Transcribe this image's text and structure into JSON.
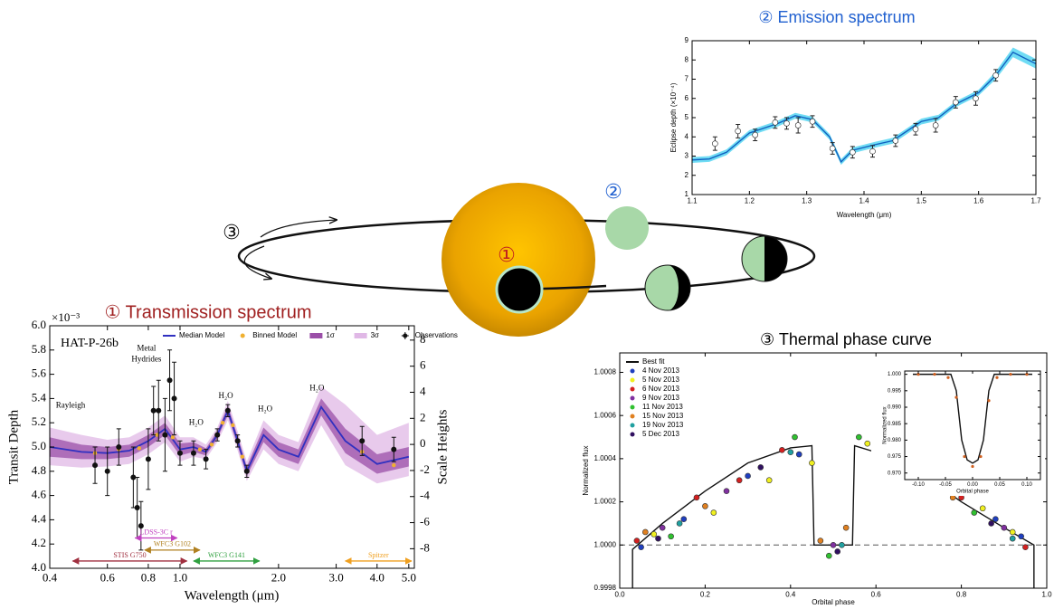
{
  "diagram": {
    "labels": [
      "③",
      "②",
      "①"
    ]
  },
  "chart_data": [
    {
      "type": "line",
      "title": "① Transmission spectrum",
      "panel_label": "HAT-P-26b",
      "xlabel": "Wavelength (μm)",
      "ylabel": "Transit Depth",
      "y2label": "Scale Heights",
      "y_multiplier": "×10⁻³",
      "xscale": "log",
      "xlim": [
        0.4,
        5.2
      ],
      "ylim": [
        4.0,
        6.0
      ],
      "y2lim": [
        -9.5,
        9.1
      ],
      "xticks": [
        0.4,
        0.6,
        0.8,
        {
          "value": 1,
          "label": "1.0"
        },
        {
          "value": 2,
          "label": "2.0"
        },
        {
          "value": 3,
          "label": "3.0"
        },
        {
          "value": 4,
          "label": "4.0"
        },
        {
          "value": 5,
          "label": "5.0"
        }
      ],
      "yticks": [
        {
          "value": 4,
          "label": "4.0"
        },
        4.2,
        4.4,
        4.6,
        4.8,
        {
          "value": 5,
          "label": "5.0"
        },
        5.2,
        5.4,
        5.6,
        5.8,
        {
          "value": 6,
          "label": "6.0"
        }
      ],
      "y2ticks": [
        -8,
        -6,
        -4,
        -2,
        0,
        2,
        4,
        6,
        8
      ],
      "legend": "top",
      "series": [
        {
          "name": "Median Model",
          "style": "line",
          "color": "#3030c0",
          "x": [
            0.4,
            0.5,
            0.6,
            0.7,
            0.8,
            0.9,
            1.0,
            1.1,
            1.2,
            1.3,
            1.4,
            1.5,
            1.6,
            1.8,
            2.0,
            2.3,
            2.7,
            3.2,
            4.0,
            5.0
          ],
          "values": [
            5.0,
            4.96,
            4.95,
            4.97,
            5.05,
            5.15,
            4.98,
            5.0,
            4.96,
            5.1,
            5.3,
            5.05,
            4.8,
            5.1,
            4.98,
            4.92,
            5.33,
            5.05,
            4.86,
            4.92
          ]
        },
        {
          "name": "Binned Model",
          "style": "points",
          "color": "#f0b030",
          "x": [
            0.55,
            0.65,
            0.75,
            0.85,
            0.95,
            1.15,
            1.25,
            1.35,
            1.45,
            1.55,
            3.6,
            4.5
          ],
          "values": [
            4.95,
            4.98,
            4.99,
            5.1,
            5.08,
            4.98,
            5.02,
            5.2,
            5.18,
            4.92,
            4.96,
            4.85
          ]
        },
        {
          "name": "1σ",
          "style": "band",
          "color": "#9b4fa8",
          "x": [
            0.4,
            0.5,
            0.6,
            0.7,
            0.8,
            0.9,
            1.0,
            1.1,
            1.2,
            1.3,
            1.4,
            1.5,
            1.6,
            1.8,
            2.0,
            2.3,
            2.7,
            3.2,
            4.0,
            5.0
          ],
          "lower": [
            4.92,
            4.9,
            4.9,
            4.92,
            5.0,
            5.1,
            4.93,
            4.96,
            4.93,
            5.07,
            5.26,
            5.01,
            4.76,
            5.04,
            4.92,
            4.86,
            5.26,
            4.95,
            4.78,
            4.84
          ],
          "upper": [
            5.08,
            5.02,
            5.0,
            5.02,
            5.1,
            5.2,
            5.03,
            5.04,
            4.99,
            5.13,
            5.34,
            5.09,
            4.84,
            5.16,
            5.04,
            4.98,
            5.4,
            5.15,
            4.94,
            5.0
          ]
        },
        {
          "name": "3σ",
          "style": "band",
          "color": "#e0b8e6",
          "x": [
            0.4,
            0.5,
            0.6,
            0.7,
            0.8,
            0.9,
            1.0,
            1.1,
            1.2,
            1.3,
            1.4,
            1.5,
            1.6,
            1.8,
            2.0,
            2.3,
            2.7,
            3.2,
            4.0,
            5.0
          ],
          "lower": [
            4.85,
            4.83,
            4.84,
            4.86,
            4.94,
            5.04,
            4.88,
            4.92,
            4.9,
            5.04,
            5.22,
            4.97,
            4.72,
            4.98,
            4.86,
            4.8,
            5.18,
            4.85,
            4.7,
            4.76
          ],
          "upper": [
            5.16,
            5.1,
            5.06,
            5.08,
            5.16,
            5.26,
            5.08,
            5.08,
            5.02,
            5.16,
            5.38,
            5.13,
            4.88,
            5.22,
            5.1,
            5.04,
            5.5,
            5.35,
            5.1,
            5.2
          ]
        },
        {
          "name": "Observations",
          "style": "errorbar",
          "color": "#111111",
          "x": [
            0.55,
            0.6,
            0.65,
            0.72,
            0.74,
            0.76,
            0.8,
            0.83,
            0.86,
            0.9,
            0.93,
            0.96,
            1.0,
            1.1,
            1.2,
            1.3,
            1.4,
            1.5,
            1.6,
            3.6,
            4.5
          ],
          "values": [
            4.85,
            4.8,
            5.0,
            4.75,
            4.5,
            4.35,
            4.9,
            5.3,
            5.3,
            5.1,
            5.55,
            5.4,
            4.95,
            4.95,
            4.9,
            5.1,
            5.3,
            5.05,
            4.8,
            5.05,
            4.98
          ],
          "errors": [
            0.15,
            0.2,
            0.15,
            0.25,
            0.25,
            0.2,
            0.25,
            0.2,
            0.25,
            0.3,
            0.25,
            0.3,
            0.1,
            0.1,
            0.08,
            0.05,
            0.05,
            0.05,
            0.05,
            0.12,
            0.1
          ]
        }
      ],
      "annotations": [
        {
          "text": "Rayleigh",
          "x": 0.463,
          "y": 5.34
        },
        {
          "text": "Metal",
          "x": 0.79,
          "y": 5.81
        },
        {
          "text": "Hydrides",
          "x": 0.79,
          "y": 5.72
        },
        {
          "text": "H₂O",
          "x": 1.12,
          "y": 5.2
        },
        {
          "text": "H₂O",
          "x": 1.38,
          "y": 5.42
        },
        {
          "text": "H₂O",
          "x": 1.82,
          "y": 5.31
        },
        {
          "text": "H₂O",
          "x": 2.62,
          "y": 5.48
        }
      ],
      "ranges": [
        {
          "label": "LDSS-3C r",
          "range": [
            0.73,
            0.98
          ],
          "y": 4.25,
          "color": "#c040c0"
        },
        {
          "label": "STIS G750",
          "range": [
            0.47,
            1.05
          ],
          "y": 4.06,
          "color": "#a03040"
        },
        {
          "label": "WFC3 G102",
          "range": [
            0.78,
            1.15
          ],
          "y": 4.15,
          "color": "#b08020"
        },
        {
          "label": "WFC3 G141",
          "range": [
            1.1,
            1.75
          ],
          "y": 4.06,
          "color": "#30a040"
        },
        {
          "label": "Spitzer",
          "range": [
            3.2,
            5.1
          ],
          "y": 4.06,
          "color": "#f0a020"
        }
      ]
    },
    {
      "type": "line",
      "title": "② Emission spectrum",
      "xlabel": "Wavelength (μm)",
      "ylabel": "Eclipse depth (×10⁻⁴)",
      "xlim": [
        1.1,
        1.7
      ],
      "ylim": [
        1,
        9
      ],
      "xticks": [
        1.1,
        1.2,
        1.3,
        1.4,
        1.5,
        1.6,
        1.7
      ],
      "yticks": [
        1,
        2,
        3,
        4,
        5,
        6,
        7,
        8,
        9
      ],
      "series": [
        {
          "style": "band",
          "color": "#40d0f0",
          "x": [
            1.1,
            1.13,
            1.16,
            1.2,
            1.25,
            1.28,
            1.31,
            1.34,
            1.36,
            1.38,
            1.42,
            1.45,
            1.5,
            1.53,
            1.56,
            1.6,
            1.63,
            1.66,
            1.7
          ],
          "lower": [
            2.65,
            2.7,
            3.05,
            4.05,
            4.55,
            4.95,
            4.75,
            3.85,
            2.55,
            3.15,
            3.45,
            3.65,
            4.65,
            4.85,
            5.55,
            6.15,
            7.0,
            8.15,
            7.55
          ],
          "upper": [
            2.95,
            3.0,
            3.35,
            4.35,
            4.85,
            5.25,
            5.05,
            4.15,
            2.85,
            3.45,
            3.75,
            3.95,
            4.95,
            5.15,
            5.85,
            6.45,
            7.4,
            8.65,
            8.05
          ]
        },
        {
          "style": "line",
          "color": "#1060c0",
          "x": [
            1.1,
            1.13,
            1.16,
            1.2,
            1.25,
            1.28,
            1.31,
            1.34,
            1.36,
            1.38,
            1.42,
            1.45,
            1.5,
            1.53,
            1.56,
            1.6,
            1.63,
            1.66,
            1.7
          ],
          "values": [
            2.8,
            2.85,
            3.2,
            4.2,
            4.7,
            5.1,
            4.9,
            4.0,
            2.7,
            3.3,
            3.6,
            3.8,
            4.8,
            5.0,
            5.7,
            6.3,
            7.2,
            8.4,
            7.8
          ]
        },
        {
          "style": "errorbar",
          "color": "#222222",
          "open": true,
          "x": [
            1.14,
            1.18,
            1.21,
            1.245,
            1.265,
            1.285,
            1.31,
            1.345,
            1.38,
            1.415,
            1.455,
            1.49,
            1.525,
            1.56,
            1.595,
            1.63
          ],
          "values": [
            3.65,
            4.3,
            4.1,
            4.75,
            4.7,
            4.6,
            4.8,
            3.4,
            3.2,
            3.25,
            3.8,
            4.4,
            4.6,
            5.8,
            6.0,
            7.2
          ],
          "errors": [
            0.35,
            0.35,
            0.3,
            0.3,
            0.3,
            0.4,
            0.3,
            0.3,
            0.3,
            0.3,
            0.3,
            0.3,
            0.35,
            0.3,
            0.35,
            0.3
          ]
        }
      ]
    },
    {
      "type": "scatter",
      "title": "③ Thermal phase curve",
      "xlabel": "Orbital phase",
      "ylabel": "Normalized flux",
      "xlim": [
        0,
        1
      ],
      "ylim": [
        0.9998,
        1.00089
      ],
      "xticks": [
        {
          "value": 0,
          "label": "0.0"
        },
        0.2,
        0.4,
        0.6,
        0.8,
        {
          "value": 1,
          "label": "1.0"
        }
      ],
      "yticks": [
        0.9998,
        {
          "value": 1,
          "label": "1.0000"
        },
        1.0002,
        1.0004,
        1.0006,
        1.0008
      ],
      "hline": 1,
      "legend": "upper left",
      "series": [
        {
          "name": "Best fit",
          "style": "line",
          "color": "#111111",
          "x": [
            0.03,
            0.03,
            0.1,
            0.2,
            0.3,
            0.4,
            0.45,
            0.455,
            0.545,
            0.55,
            0.6,
            0.7,
            0.8,
            0.9,
            0.97,
            0.97
          ],
          "values": [
            0.9998,
            0.99998,
            1.0001,
            1.00025,
            1.00038,
            1.00045,
            1.00046,
            1.0,
            1.0,
            1.00046,
            1.00043,
            1.00034,
            1.0002,
            1.00008,
            1.0,
            0.9998
          ]
        },
        {
          "name": "4 Nov 2013",
          "color": "#1f3fbf",
          "x": [
            0.05,
            0.15,
            0.3,
            0.42,
            0.6,
            0.75,
            0.88,
            0.94
          ],
          "values": [
            0.99999,
            1.00012,
            1.00032,
            1.00042,
            1.0004,
            1.00028,
            1.00012,
            1.00004
          ]
        },
        {
          "name": "5 Nov 2013",
          "color": "#f0f020",
          "x": [
            0.08,
            0.22,
            0.35,
            0.45,
            0.58,
            0.7,
            0.85,
            0.92
          ],
          "values": [
            1.00005,
            1.00015,
            1.0003,
            1.00038,
            1.00047,
            1.0003,
            1.00017,
            1.00006
          ]
        },
        {
          "name": "6 Nov 2013",
          "color": "#d42020",
          "x": [
            0.04,
            0.18,
            0.28,
            0.38,
            0.62,
            0.72,
            0.8,
            0.95
          ],
          "values": [
            1.00002,
            1.00022,
            1.0003,
            1.00044,
            1.00046,
            1.00032,
            1.00022,
            0.99999
          ]
        },
        {
          "name": "9 Nov 2013",
          "color": "#8030a0",
          "x": [
            0.1,
            0.25,
            0.5,
            0.65,
            0.9
          ],
          "values": [
            1.00008,
            1.00025,
            1.0,
            1.00035,
            1.00008
          ]
        },
        {
          "name": "11 Nov 2013",
          "color": "#30c030",
          "x": [
            0.12,
            0.41,
            0.49,
            0.56,
            0.83
          ],
          "values": [
            1.00004,
            1.0005,
            0.99995,
            1.0005,
            1.00015
          ]
        },
        {
          "name": "15 Nov 2013",
          "color": "#e08020",
          "x": [
            0.06,
            0.2,
            0.47,
            0.53,
            0.78
          ],
          "values": [
            1.00006,
            1.00018,
            1.00002,
            1.00008,
            1.00022
          ]
        },
        {
          "name": "19 Nov 2013",
          "color": "#20a0a0",
          "x": [
            0.14,
            0.4,
            0.52,
            0.68,
            0.92
          ],
          "values": [
            1.0001,
            1.00043,
            1.0,
            1.00036,
            1.00003
          ]
        },
        {
          "name": "5 Dec 2013",
          "color": "#301060",
          "x": [
            0.09,
            0.33,
            0.51,
            0.67,
            0.87
          ],
          "values": [
            1.00003,
            1.00036,
            0.99997,
            1.00038,
            1.0001
          ]
        }
      ]
    },
    {
      "type": "line",
      "xlabel": "Orbital phase",
      "ylabel": "Normalized flux",
      "xlim": [
        -0.125,
        0.125
      ],
      "ylim": [
        0.968,
        1.001
      ],
      "xticks": [
        {
          "value": -0.1,
          "label": "-0.10"
        },
        -0.05,
        {
          "value": 0,
          "label": "0.00"
        },
        0.05,
        {
          "value": 0.1,
          "label": "0.10"
        }
      ],
      "yticks": [
        {
          "value": 0.97,
          "label": "0.970"
        },
        0.975,
        {
          "value": 0.98,
          "label": "0.980"
        },
        0.985,
        {
          "value": 0.99,
          "label": "0.990"
        },
        0.995,
        {
          "value": 1,
          "label": "1.000"
        }
      ],
      "series": [
        {
          "style": "line",
          "color": "#111111",
          "x": [
            -0.11,
            -0.04,
            -0.03,
            -0.02,
            -0.01,
            0,
            0.01,
            0.02,
            0.03,
            0.04,
            0.11
          ],
          "values": [
            1.0,
            1.0,
            0.995,
            0.98,
            0.974,
            0.973,
            0.974,
            0.98,
            0.995,
            1.0,
            1.0
          ]
        },
        {
          "style": "points",
          "color": "#d06020",
          "x": [
            -0.1,
            -0.07,
            -0.045,
            -0.03,
            -0.015,
            0,
            0.015,
            0.03,
            0.045,
            0.07,
            0.1
          ],
          "values": [
            1.0,
            1.0,
            0.999,
            0.993,
            0.975,
            0.972,
            0.975,
            0.992,
            0.999,
            1.0,
            1.0
          ]
        }
      ]
    }
  ]
}
